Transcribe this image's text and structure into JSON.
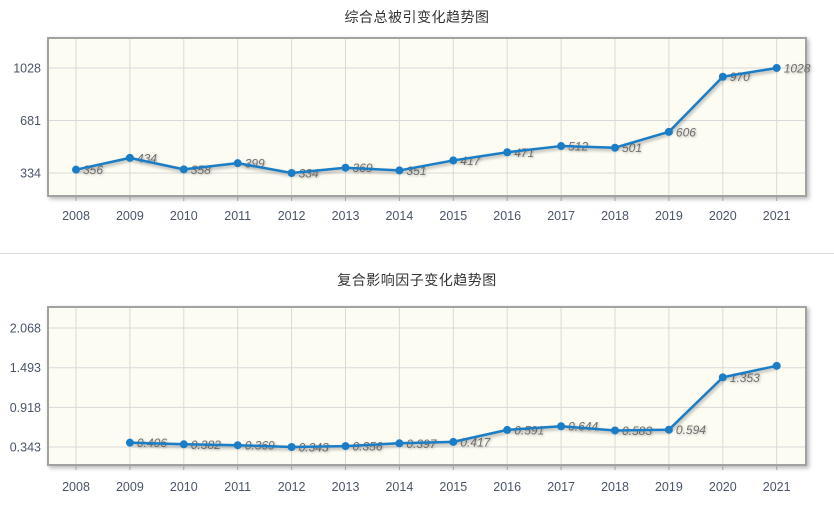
{
  "colors": {
    "line": "#1a7dc5",
    "point": "#1a7dc5",
    "plot_background": "#fdfcf2",
    "grid": "#d9d9d9",
    "plot_border": "#a2a2a2",
    "data_label": "#6f6f6f",
    "axis_label": "#4a5568",
    "title": "#333333",
    "divider": "#dddddd"
  },
  "chart_data": [
    {
      "type": "line",
      "title": "综合总被引变化趋势图",
      "categories": [
        "2008",
        "2009",
        "2010",
        "2011",
        "2012",
        "2013",
        "2014",
        "2015",
        "2016",
        "2017",
        "2018",
        "2019",
        "2020",
        "2021"
      ],
      "values": [
        356,
        434,
        358,
        399,
        334,
        369,
        351,
        417,
        471,
        512,
        501,
        606,
        970,
        1028
      ],
      "point_labels": [
        "356",
        "434",
        "358",
        "399",
        "334",
        "369",
        "351",
        "417",
        "471",
        "512",
        "501",
        "606",
        "970",
        "1028"
      ],
      "yticks": [
        334,
        681,
        1028
      ],
      "ytick_labels": [
        "334",
        "681",
        "1028"
      ],
      "ylim": [
        182,
        1226
      ],
      "xlabel": "",
      "ylabel": "",
      "grid": true,
      "legend": "none"
    },
    {
      "type": "line",
      "title": "复合影响因子变化趋势图",
      "categories": [
        "2008",
        "2009",
        "2010",
        "2011",
        "2012",
        "2013",
        "2014",
        "2015",
        "2016",
        "2017",
        "2018",
        "2019",
        "2020",
        "2021"
      ],
      "values": [
        null,
        0.406,
        0.382,
        0.369,
        0.343,
        0.356,
        0.397,
        0.417,
        0.591,
        0.644,
        0.583,
        0.594,
        1.353,
        1.52
      ],
      "point_labels": [
        "",
        "0.406",
        "0.382",
        "0.369",
        "0.343",
        "0.356",
        "0.397",
        "0.417",
        "0.591",
        "0.644",
        "0.583",
        "0.594",
        "1.353",
        ""
      ],
      "yticks": [
        0.343,
        0.918,
        1.493,
        2.068
      ],
      "ytick_labels": [
        "0.343",
        "0.918",
        "1.493",
        "2.068"
      ],
      "ylim": [
        0.082,
        2.373
      ],
      "xlabel": "",
      "ylabel": "",
      "grid": true,
      "legend": "none"
    }
  ]
}
